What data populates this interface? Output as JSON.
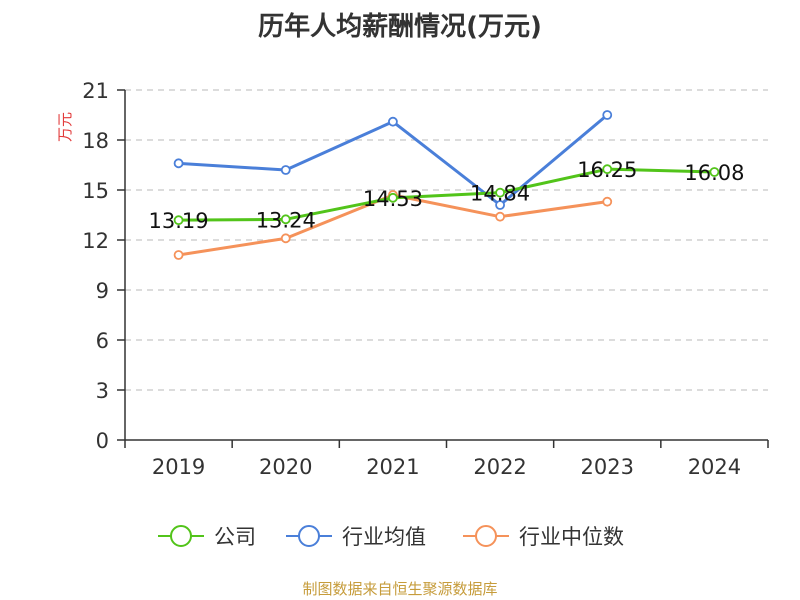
{
  "chart_data": {
    "type": "line",
    "title": "历年人均薪酬情况(万元)",
    "ylabel": "万元",
    "xlabel": "",
    "categories": [
      "2019",
      "2020",
      "2021",
      "2022",
      "2023",
      "2024"
    ],
    "ylim": [
      0,
      21
    ],
    "yticks": [
      0,
      3,
      6,
      9,
      12,
      15,
      18,
      21
    ],
    "grid": true,
    "legend_position": "bottom",
    "series": [
      {
        "name": "公司",
        "color": "#52c41a",
        "values": [
          13.19,
          13.24,
          14.53,
          14.84,
          16.25,
          16.08
        ],
        "labels": [
          "13.19",
          "13.24",
          "14.53",
          "14.84",
          "16.25",
          "16.08"
        ]
      },
      {
        "name": "行业均值",
        "color": "#4a7fd9",
        "values": [
          16.6,
          16.2,
          19.1,
          14.1,
          19.5,
          null
        ]
      },
      {
        "name": "行业中位数",
        "color": "#f5925a",
        "values": [
          11.1,
          12.1,
          14.7,
          13.4,
          14.3,
          null
        ]
      }
    ]
  },
  "source_note": "制图数据来自恒生聚源数据库"
}
